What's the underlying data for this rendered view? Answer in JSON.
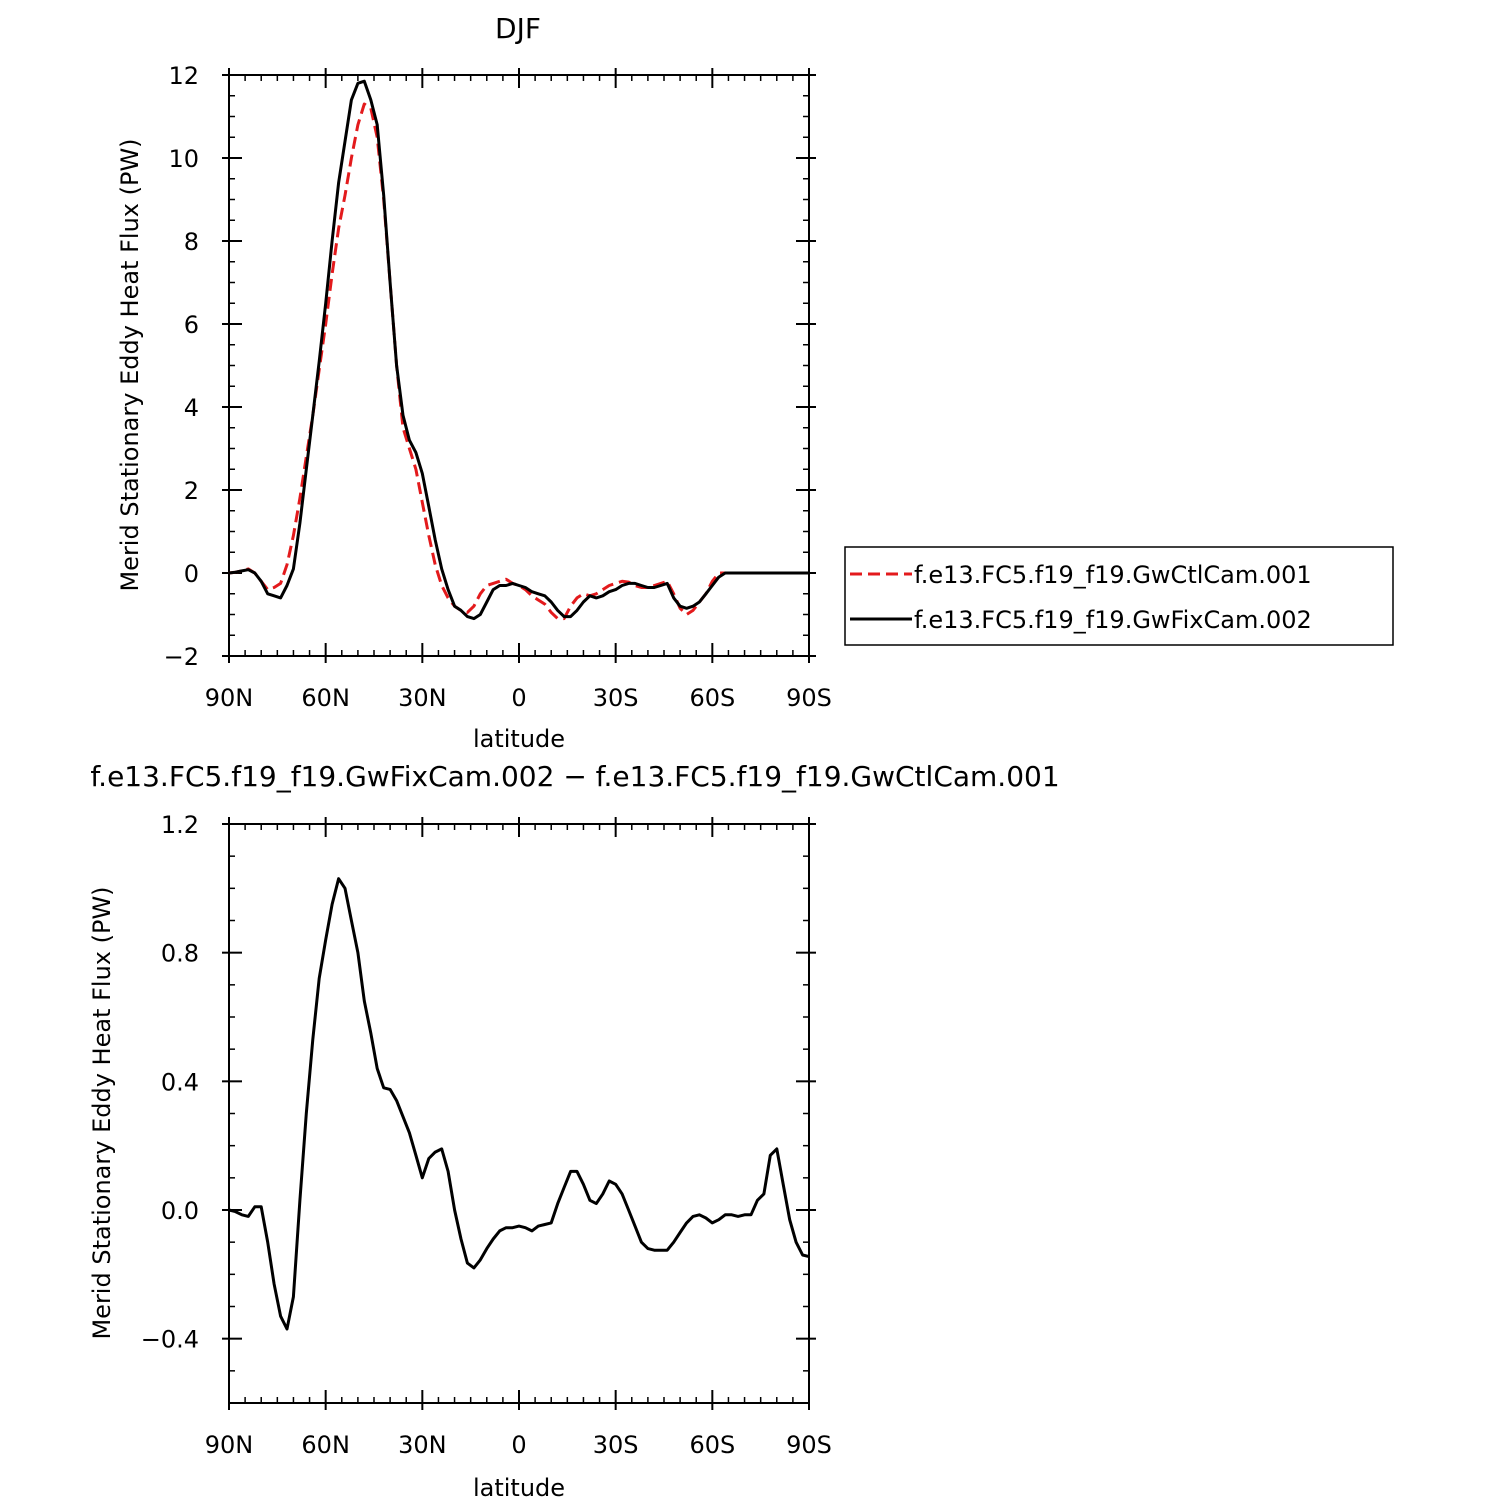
{
  "chart_data": [
    {
      "type": "line",
      "title": "DJF",
      "xlabel": "latitude",
      "ylabel": "Merid Stationary Eddy Heat Flux (PW)",
      "xlim": [
        90,
        -90
      ],
      "ylim": [
        -2,
        12
      ],
      "grid": false,
      "x_ticks": [
        90,
        60,
        30,
        0,
        -30,
        -60,
        -90
      ],
      "x_tick_labels": [
        "90N",
        "60N",
        "30N",
        "0",
        "30S",
        "60S",
        "90S"
      ],
      "y_ticks": [
        -2,
        0,
        2,
        4,
        6,
        8,
        10,
        12
      ],
      "y_tick_labels": [
        "−2",
        "0",
        "2",
        "4",
        "6",
        "8",
        "10",
        "12"
      ],
      "legend_position": "right",
      "series": [
        {
          "name": "f.e13.FC5.f19_f19.GwCtlCam.001",
          "color": "#e31a1c",
          "dash": "dashed",
          "x": [
            90,
            88,
            86,
            84,
            82,
            80,
            78,
            76,
            74,
            72,
            70,
            68,
            66,
            64,
            62,
            60,
            58,
            56,
            54,
            52,
            50,
            48,
            46,
            44,
            42,
            40,
            38,
            36,
            34,
            32,
            30,
            28,
            26,
            24,
            22,
            20,
            18,
            16,
            14,
            12,
            10,
            8,
            6,
            4,
            2,
            0,
            -2,
            -4,
            -6,
            -8,
            -10,
            -12,
            -14,
            -16,
            -18,
            -20,
            -22,
            -24,
            -26,
            -28,
            -30,
            -32,
            -34,
            -36,
            -38,
            -40,
            -42,
            -44,
            -46,
            -48,
            -50,
            -52,
            -54,
            -56,
            -58,
            -60,
            -62,
            -64,
            -66,
            -68,
            -70,
            -72,
            -74,
            -76,
            -78,
            -80,
            -82,
            -84,
            -86,
            -88,
            -90
          ],
          "y": [
            0,
            0.02,
            0.05,
            0.1,
            0.0,
            -0.2,
            -0.4,
            -0.35,
            -0.25,
            0.2,
            0.9,
            1.8,
            2.8,
            3.8,
            4.9,
            6.0,
            7.2,
            8.3,
            9.1,
            10.0,
            10.8,
            11.3,
            11.2,
            10.5,
            9.0,
            7.0,
            5.0,
            3.5,
            3.0,
            2.5,
            1.7,
            0.9,
            0.2,
            -0.3,
            -0.6,
            -0.8,
            -0.9,
            -0.95,
            -0.8,
            -0.5,
            -0.3,
            -0.25,
            -0.2,
            -0.15,
            -0.25,
            -0.3,
            -0.4,
            -0.55,
            -0.65,
            -0.75,
            -0.95,
            -1.1,
            -1.1,
            -0.8,
            -0.6,
            -0.5,
            -0.55,
            -0.5,
            -0.4,
            -0.3,
            -0.25,
            -0.2,
            -0.22,
            -0.3,
            -0.35,
            -0.35,
            -0.3,
            -0.25,
            -0.2,
            -0.5,
            -0.85,
            -1.0,
            -0.9,
            -0.7,
            -0.5,
            -0.2,
            0.0,
            0.0,
            0.0,
            0.0,
            0.0,
            0.0,
            0.0,
            0.0,
            0.0,
            0.0,
            0.0,
            0.0,
            0.0,
            0.0,
            0.0
          ]
        },
        {
          "name": "f.e13.FC5.f19_f19.GwFixCam.002",
          "color": "#000000",
          "dash": "solid",
          "x": [
            90,
            88,
            86,
            84,
            82,
            80,
            78,
            76,
            74,
            72,
            70,
            68,
            66,
            64,
            62,
            60,
            58,
            56,
            54,
            52,
            50,
            48,
            46,
            44,
            42,
            40,
            38,
            36,
            34,
            32,
            30,
            28,
            26,
            24,
            22,
            20,
            18,
            16,
            14,
            12,
            10,
            8,
            6,
            4,
            2,
            0,
            -2,
            -4,
            -6,
            -8,
            -10,
            -12,
            -14,
            -16,
            -18,
            -20,
            -22,
            -24,
            -26,
            -28,
            -30,
            -32,
            -34,
            -36,
            -38,
            -40,
            -42,
            -44,
            -46,
            -48,
            -50,
            -52,
            -54,
            -56,
            -58,
            -60,
            -62,
            -64,
            -66,
            -68,
            -70,
            -72,
            -74,
            -76,
            -78,
            -80,
            -82,
            -84,
            -86,
            -88,
            -90
          ],
          "y": [
            0,
            0.02,
            0.05,
            0.08,
            0.0,
            -0.2,
            -0.5,
            -0.55,
            -0.6,
            -0.3,
            0.1,
            1.2,
            2.5,
            3.8,
            5.1,
            6.5,
            8.0,
            9.4,
            10.4,
            11.4,
            11.8,
            11.85,
            11.4,
            10.8,
            9.1,
            7.0,
            5.0,
            3.8,
            3.2,
            2.9,
            2.4,
            1.6,
            0.8,
            0.1,
            -0.4,
            -0.8,
            -0.9,
            -1.05,
            -1.1,
            -1.0,
            -0.7,
            -0.4,
            -0.3,
            -0.3,
            -0.25,
            -0.3,
            -0.35,
            -0.45,
            -0.5,
            -0.55,
            -0.7,
            -0.9,
            -1.05,
            -1.05,
            -0.9,
            -0.7,
            -0.55,
            -0.6,
            -0.55,
            -0.45,
            -0.4,
            -0.3,
            -0.25,
            -0.25,
            -0.3,
            -0.35,
            -0.35,
            -0.3,
            -0.25,
            -0.6,
            -0.8,
            -0.85,
            -0.8,
            -0.7,
            -0.5,
            -0.3,
            -0.1,
            0.0,
            0.0,
            0.0,
            0.0,
            0.0,
            0.0,
            0.0,
            0.0,
            0.0,
            0.0,
            0.0,
            0.0,
            0.0,
            0.0
          ]
        }
      ]
    },
    {
      "type": "line",
      "title": "f.e13.FC5.f19_f19.GwFixCam.002 − f.e13.FC5.f19_f19.GwCtlCam.001",
      "xlabel": "latitude",
      "ylabel": "Merid Stationary Eddy Heat Flux (PW)",
      "xlim": [
        90,
        -90
      ],
      "ylim": [
        -0.6,
        1.2
      ],
      "grid": false,
      "x_ticks": [
        90,
        60,
        30,
        0,
        -30,
        -60,
        -90
      ],
      "x_tick_labels": [
        "90N",
        "60N",
        "30N",
        "0",
        "30S",
        "60S",
        "90S"
      ],
      "y_ticks": [
        -0.4,
        0.0,
        0.4,
        0.8,
        1.2
      ],
      "y_tick_labels": [
        "−0.4",
        "0.0",
        "0.4",
        "0.8",
        "1.2"
      ],
      "series": [
        {
          "color": "#000000",
          "dash": "solid",
          "x": [
            90,
            88,
            86,
            84,
            82,
            80,
            78,
            76,
            74,
            72,
            70,
            68,
            66,
            64,
            62,
            60,
            58,
            56,
            54,
            52,
            50,
            48,
            46,
            44,
            42,
            40,
            38,
            36,
            34,
            32,
            30,
            28,
            26,
            24,
            22,
            20,
            18,
            16,
            14,
            12,
            10,
            8,
            6,
            4,
            2,
            0,
            -2,
            -4,
            -6,
            -8,
            -10,
            -12,
            -14,
            -16,
            -18,
            -20,
            -22,
            -24,
            -26,
            -28,
            -30,
            -32,
            -34,
            -36,
            -38,
            -40,
            -42,
            -44,
            -46,
            -48,
            -50,
            -52,
            -54,
            -56,
            -58,
            -60,
            -62,
            -64,
            -66,
            -68,
            -70,
            -72,
            -74,
            -76,
            -78,
            -80,
            -82,
            -84,
            -86,
            -88,
            -90
          ],
          "y": [
            0.0,
            -0.005,
            -0.015,
            -0.02,
            0.01,
            0.01,
            -0.1,
            -0.23,
            -0.33,
            -0.37,
            -0.27,
            0.03,
            0.3,
            0.53,
            0.72,
            0.84,
            0.95,
            1.03,
            1.0,
            0.9,
            0.8,
            0.65,
            0.55,
            0.44,
            0.38,
            0.375,
            0.34,
            0.29,
            0.24,
            0.17,
            0.1,
            0.16,
            0.18,
            0.19,
            0.12,
            0.0,
            -0.09,
            -0.165,
            -0.18,
            -0.155,
            -0.12,
            -0.09,
            -0.065,
            -0.055,
            -0.055,
            -0.05,
            -0.055,
            -0.065,
            -0.05,
            -0.045,
            -0.04,
            0.02,
            0.07,
            0.12,
            0.12,
            0.08,
            0.03,
            0.02,
            0.05,
            0.09,
            0.08,
            0.05,
            0.0,
            -0.05,
            -0.1,
            -0.12,
            -0.125,
            -0.125,
            -0.125,
            -0.1,
            -0.07,
            -0.04,
            -0.02,
            -0.015,
            -0.025,
            -0.04,
            -0.03,
            -0.015,
            -0.015,
            -0.02,
            -0.015,
            -0.015,
            0.03,
            0.05,
            0.17,
            0.19,
            0.08,
            -0.03,
            -0.1,
            -0.14,
            -0.145
          ]
        }
      ]
    }
  ]
}
